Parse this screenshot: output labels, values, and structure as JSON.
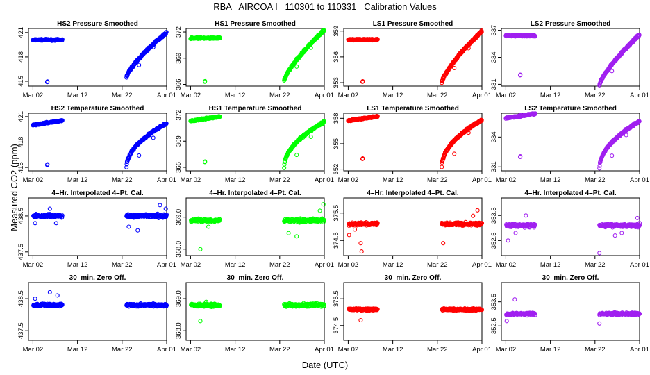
{
  "title": "RBA   AIRCOA I   110301 to 110331   Calibration Values",
  "xlabel": "Date (UTC)",
  "ylabel": "Measured CO2 (ppm)",
  "x_tick_labels": [
    "Mar 02",
    "Mar 12",
    "Mar 22",
    "Apr 01"
  ],
  "x_tick_days": [
    1,
    11,
    21,
    31
  ],
  "xlim": [
    0,
    31
  ],
  "colors": {
    "HS2": "#0000ff",
    "HS1": "#00ff00",
    "LS1": "#ff0000",
    "LS2": "#a020f0"
  },
  "chart_data": [
    {
      "type": "scatter",
      "title": "HS2 Pressure Smoothed",
      "series": "HS2",
      "kind": "pressure",
      "ylim": [
        414.4,
        421.5
      ],
      "yticks": [
        415,
        418,
        421
      ],
      "tick_labels": [
        "415",
        "418",
        "421"
      ],
      "early_level": 420.1,
      "outlier": 414.9,
      "late_start": 415.5,
      "late_end": 421.0,
      "late_low": [
        28,
        419.2
      ]
    },
    {
      "type": "scatter",
      "title": "HS1 Pressure Smoothed",
      "series": "HS1",
      "kind": "pressure",
      "ylim": [
        365.8,
        372.4
      ],
      "yticks": [
        366,
        369,
        372
      ],
      "tick_labels": [
        "366",
        "369",
        "372"
      ],
      "early_level": 371.3,
      "outlier": 366.3,
      "late_start": 366.4,
      "late_end": 372.2,
      "late_low": [
        28,
        370.2
      ]
    },
    {
      "type": "scatter",
      "title": "LS1 Pressure Smoothed",
      "series": "LS1",
      "kind": "pressure",
      "ylim": [
        352.6,
        359.3
      ],
      "yticks": [
        353,
        356,
        359
      ],
      "tick_labels": [
        "353",
        "356",
        "359"
      ],
      "early_level": 358.0,
      "outlier": 353.1,
      "late_start": 353.0,
      "late_end": 359.0,
      "late_low": [
        28,
        357.0
      ]
    },
    {
      "type": "scatter",
      "title": "LS2 Pressure Smoothed",
      "series": "LS2",
      "kind": "pressure",
      "ylim": [
        330.8,
        337.2
      ],
      "yticks": [
        331,
        334,
        337
      ],
      "tick_labels": [
        "331",
        "334",
        "337"
      ],
      "early_level": 336.4,
      "outlier": 332.0,
      "late_start": 330.9,
      "late_end": 336.5,
      "late_low": [
        28,
        335.0
      ]
    },
    {
      "type": "scatter",
      "title": "HS2 Temperature Smoothed",
      "series": "HS2",
      "kind": "temperature",
      "ylim": [
        414.6,
        421.4
      ],
      "yticks": [
        415,
        418,
        421
      ],
      "tick_labels": [
        "415",
        "418",
        "421"
      ],
      "early_level": 420.0,
      "outlier": 415.3,
      "late_start": 415.0,
      "late_end": 420.2,
      "late_low": [
        28,
        418.5
      ]
    },
    {
      "type": "scatter",
      "title": "HS1 Temperature Smoothed",
      "series": "HS1",
      "kind": "temperature",
      "ylim": [
        365.6,
        372.2
      ],
      "yticks": [
        366,
        369,
        372
      ],
      "tick_labels": [
        "366",
        "369",
        "372"
      ],
      "early_level": 371.3,
      "outlier": 366.6,
      "late_start": 366.0,
      "late_end": 371.2,
      "late_low": [
        28,
        369.5
      ]
    },
    {
      "type": "scatter",
      "title": "LS1 Temperature Smoothed",
      "series": "LS1",
      "kind": "temperature",
      "ylim": [
        351.8,
        358.6
      ],
      "yticks": [
        352,
        355,
        358
      ],
      "tick_labels": [
        "352",
        "355",
        "358"
      ],
      "early_level": 357.7,
      "outlier": 353.2,
      "late_start": 352.3,
      "late_end": 357.8,
      "late_low": [
        28,
        356.3
      ]
    },
    {
      "type": "scatter",
      "title": "LS2 Temperature Smoothed",
      "series": "LS2",
      "kind": "temperature",
      "ylim": [
        330.6,
        336.4
      ],
      "yticks": [
        331,
        334
      ],
      "tick_labels": [
        "331",
        "334"
      ],
      "early_level": 335.9,
      "outlier": 332.0,
      "late_start": 330.8,
      "late_end": 335.6,
      "late_low": [
        28,
        334.2
      ]
    },
    {
      "type": "scatter",
      "title": "4–Hr. Interpolated 4–Pt. Cal.",
      "series": "HS2",
      "kind": "flat",
      "ylim": [
        437.4,
        439.0
      ],
      "yticks": [
        437.5,
        438.5
      ],
      "tick_labels": [
        "437.5",
        "438.5"
      ],
      "level": 438.5,
      "spread": 0.07,
      "outliers": [
        [
          1.5,
          438.3
        ],
        [
          4.8,
          438.7
        ],
        [
          6.2,
          438.3
        ],
        [
          22.5,
          438.2
        ],
        [
          24.5,
          438.1
        ],
        [
          29.5,
          438.8
        ],
        [
          30.8,
          438.7
        ]
      ]
    },
    {
      "type": "scatter",
      "title": "4–Hr. Interpolated 4–Pt. Cal.",
      "series": "HS1",
      "kind": "flat",
      "ylim": [
        367.8,
        369.6
      ],
      "yticks": [
        368.0,
        369.0
      ],
      "tick_labels": [
        "368.0",
        "369.0"
      ],
      "level": 368.9,
      "spread": 0.08,
      "outliers": [
        [
          3.2,
          368.0
        ],
        [
          5.0,
          368.7
        ],
        [
          23.0,
          368.5
        ],
        [
          24.8,
          368.4
        ],
        [
          30.0,
          369.2
        ],
        [
          30.8,
          369.4
        ]
      ]
    },
    {
      "type": "scatter",
      "title": "4–Hr. Interpolated 4–Pt. Cal.",
      "series": "LS1",
      "kind": "flat",
      "ylim": [
        373.95,
        376.05
      ],
      "yticks": [
        374.5,
        375.5
      ],
      "tick_labels": [
        "374.5",
        "375.5"
      ],
      "level": 375.1,
      "spread": 0.08,
      "outliers": [
        [
          1.2,
          374.7
        ],
        [
          2.5,
          374.9
        ],
        [
          3.8,
          374.4
        ],
        [
          4.0,
          374.1
        ],
        [
          22.3,
          374.4
        ],
        [
          29.0,
          375.4
        ],
        [
          30.0,
          375.6
        ]
      ]
    },
    {
      "type": "scatter",
      "title": "4–Hr. Interpolated 4–Pt. Cal.",
      "series": "LS2",
      "kind": "flat",
      "ylim": [
        351.9,
        354.2
      ],
      "yticks": [
        352.5,
        353.5
      ],
      "tick_labels": [
        "352.5",
        "353.5"
      ],
      "level": 353.1,
      "spread": 0.09,
      "outliers": [
        [
          1.5,
          352.5
        ],
        [
          3.2,
          352.8
        ],
        [
          5.5,
          353.5
        ],
        [
          22.0,
          352.0
        ],
        [
          25.5,
          352.7
        ],
        [
          27.0,
          352.8
        ],
        [
          30.5,
          353.4
        ],
        [
          31.0,
          353.2
        ]
      ]
    },
    {
      "type": "scatter",
      "title": "30–min. Zero Off.",
      "series": "HS2",
      "kind": "flat",
      "ylim": [
        437.2,
        439.0
      ],
      "yticks": [
        437.5,
        438.5
      ],
      "tick_labels": [
        "437.5",
        "438.5"
      ],
      "level": 438.3,
      "spread": 0.06,
      "outliers": [
        [
          1.5,
          438.5
        ],
        [
          4.8,
          438.7
        ],
        [
          6.5,
          438.6
        ]
      ]
    },
    {
      "type": "scatter",
      "title": "30–min. Zero Off.",
      "series": "HS1",
      "kind": "flat",
      "ylim": [
        367.7,
        369.5
      ],
      "yticks": [
        368.0,
        369.0
      ],
      "tick_labels": [
        "368.0",
        "369.0"
      ],
      "level": 368.8,
      "spread": 0.07,
      "outliers": [
        [
          3.2,
          368.3
        ],
        [
          4.5,
          368.9
        ]
      ]
    },
    {
      "type": "scatter",
      "title": "30–min. Zero Off.",
      "series": "LS1",
      "kind": "flat",
      "ylim": [
        373.95,
        376.1
      ],
      "yticks": [
        374.5,
        375.5
      ],
      "tick_labels": [
        "374.5",
        "375.5"
      ],
      "level": 375.1,
      "spread": 0.06,
      "outliers": [
        [
          3.8,
          374.7
        ]
      ]
    },
    {
      "type": "scatter",
      "title": "30–min. Zero Off.",
      "series": "LS2",
      "kind": "flat",
      "ylim": [
        351.9,
        354.3
      ],
      "yticks": [
        352.5,
        353.5
      ],
      "tick_labels": [
        "352.5",
        "353.5"
      ],
      "level": 353.0,
      "spread": 0.07,
      "outliers": [
        [
          1.2,
          352.7
        ],
        [
          3.0,
          353.6
        ],
        [
          22.0,
          352.6
        ]
      ]
    }
  ]
}
